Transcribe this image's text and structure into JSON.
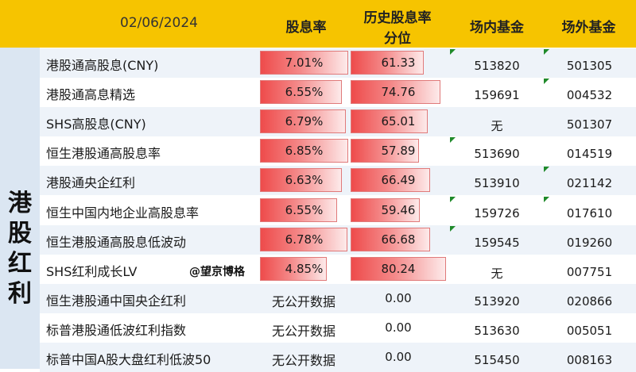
{
  "header": {
    "date": "02/06/2024",
    "col_yield": "股息率",
    "col_pct_line1": "历史股息率",
    "col_pct_line2": "分位",
    "col_onmarket": "场内基金",
    "col_offmarket": "场外基金"
  },
  "side_label": [
    "港",
    "股",
    "红",
    "利"
  ],
  "watermark": "@望京博格",
  "rows": [
    {
      "name": "港股通高股息(CNY)",
      "yield": "7.01%",
      "pct": "61.33",
      "pct_value": 61.33,
      "on": "513820",
      "off": "501305"
    },
    {
      "name": "港股通高息精选",
      "yield": "6.55%",
      "pct": "74.76",
      "pct_value": 74.76,
      "on": "159691",
      "off": "004532"
    },
    {
      "name": "SHS高股息(CNY)",
      "yield": "6.79%",
      "pct": "65.01",
      "pct_value": 65.01,
      "on": "无",
      "off": "501307"
    },
    {
      "name": "恒生港股通高股息率",
      "yield": "6.85%",
      "pct": "57.89",
      "pct_value": 57.89,
      "on": "513690",
      "off": "014519"
    },
    {
      "name": "港股通央企红利",
      "yield": "6.63%",
      "pct": "66.49",
      "pct_value": 66.49,
      "on": "513910",
      "off": "021142"
    },
    {
      "name": "恒生中国内地企业高股息率",
      "yield": "6.55%",
      "pct": "59.46",
      "pct_value": 59.46,
      "on": "159726",
      "off": "017610"
    },
    {
      "name": "恒生港股通高股息低波动",
      "yield": "6.78%",
      "pct": "66.68",
      "pct_value": 66.68,
      "on": "159545",
      "off": "019260"
    },
    {
      "name": "SHS红利成长LV",
      "yield": "4.85%",
      "pct": "80.24",
      "pct_value": 80.24,
      "on": "无",
      "off": "007751"
    },
    {
      "name": "恒生港股通中国央企红利",
      "yield": "无公开数据",
      "pct": "0.00",
      "pct_value": 0,
      "on": "513920",
      "off": "020866"
    },
    {
      "name": "标普港股通低波红利指数",
      "yield": "无公开数据",
      "pct": "0.00",
      "pct_value": 0,
      "on": "513630",
      "off": "005051"
    },
    {
      "name": "标普中国A股大盘红利低波50",
      "yield": "无公开数据",
      "pct": "0.00",
      "pct_value": 0,
      "on": "515450",
      "off": "008163"
    }
  ]
}
